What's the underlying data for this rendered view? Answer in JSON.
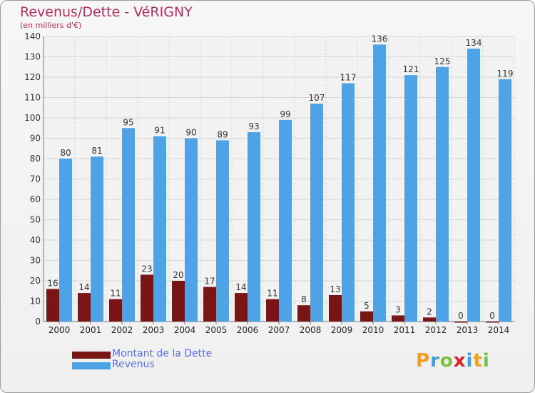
{
  "header": {
    "title": "Revenus/Dette - VéRIGNY",
    "subtitle": "(en milliers d'€)"
  },
  "chart_data": {
    "type": "bar",
    "categories": [
      "2000",
      "2001",
      "2002",
      "2003",
      "2004",
      "2005",
      "2006",
      "2007",
      "2008",
      "2009",
      "2010",
      "2011",
      "2012",
      "2013",
      "2014"
    ],
    "series": [
      {
        "name": "Montant de la Dette",
        "color": "#7a1515",
        "values": [
          16,
          14,
          11,
          23,
          20,
          17,
          14,
          11,
          8,
          13,
          5,
          3,
          2,
          0,
          0
        ]
      },
      {
        "name": "Revenus",
        "color": "#4ea3e6",
        "values": [
          80,
          81,
          95,
          91,
          90,
          89,
          93,
          99,
          107,
          117,
          136,
          121,
          125,
          134,
          119
        ]
      }
    ],
    "ylim": [
      0,
      140
    ],
    "yticks": [
      0,
      10,
      20,
      30,
      40,
      50,
      60,
      70,
      80,
      90,
      100,
      110,
      120,
      130,
      140
    ],
    "grid": true,
    "legend_position": "bottom-left"
  },
  "logo": {
    "letters": [
      "P",
      "r",
      "o",
      "x",
      "i",
      "t",
      "i"
    ]
  }
}
